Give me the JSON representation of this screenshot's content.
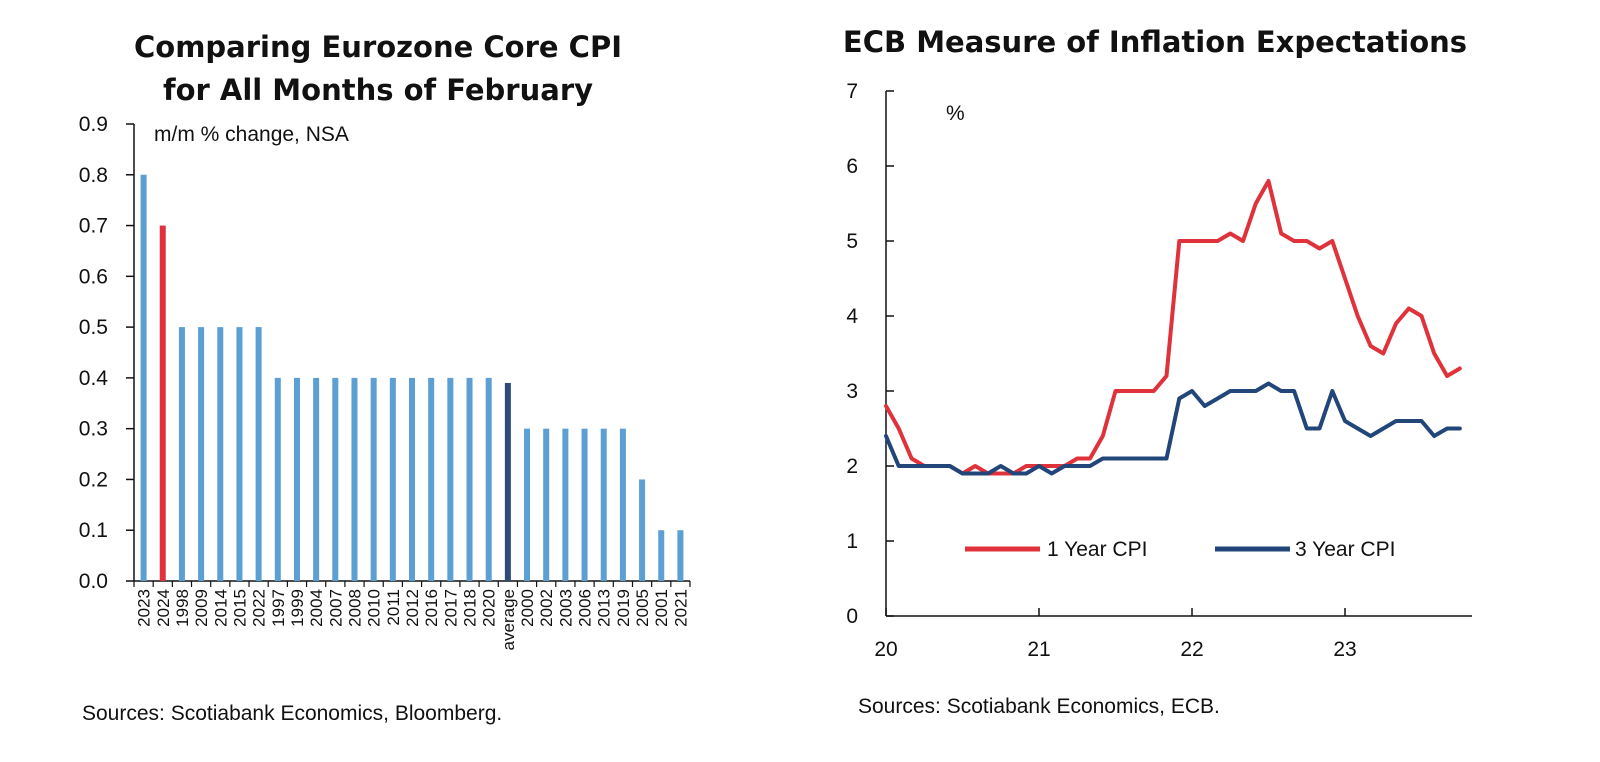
{
  "colors": {
    "bar_default": "#5b9fd3",
    "bar_highlight": "#e0323a",
    "bar_average": "#2d4a79",
    "line_1yr": "#e0323a",
    "line_3yr": "#23467a"
  },
  "chart_data": [
    {
      "type": "bar",
      "title_lines": [
        "Comparing Eurozone Core CPI",
        "for All Months of February"
      ],
      "annotation": "m/m % change, NSA",
      "source": "Sources: Scotiabank Economics, Bloomberg.",
      "ylim": [
        0,
        0.9
      ],
      "yticks": [
        "0.0",
        "0.1",
        "0.2",
        "0.3",
        "0.4",
        "0.5",
        "0.6",
        "0.7",
        "0.8",
        "0.9"
      ],
      "categories": [
        "2023",
        "2024",
        "1998",
        "2009",
        "2014",
        "2015",
        "2022",
        "1997",
        "1999",
        "2004",
        "2007",
        "2008",
        "2010",
        "2011",
        "2012",
        "2016",
        "2017",
        "2018",
        "2020",
        "average",
        "2000",
        "2002",
        "2003",
        "2006",
        "2013",
        "2019",
        "2005",
        "2001",
        "2021"
      ],
      "values": [
        0.8,
        0.7,
        0.5,
        0.5,
        0.5,
        0.5,
        0.5,
        0.4,
        0.4,
        0.4,
        0.4,
        0.4,
        0.4,
        0.4,
        0.4,
        0.4,
        0.4,
        0.4,
        0.4,
        0.39,
        0.3,
        0.3,
        0.3,
        0.3,
        0.3,
        0.3,
        0.2,
        0.1,
        0.1
      ],
      "highlight": [
        "2024"
      ],
      "average_category": "average",
      "grid": false,
      "legend": "none"
    },
    {
      "type": "line",
      "title": "ECB Measure of Inflation Expectations",
      "annotation": "%",
      "source": "Sources: Scotiabank Economics,  ECB.",
      "ylim": [
        0,
        7
      ],
      "yticks": [
        "0",
        "1",
        "2",
        "3",
        "4",
        "5",
        "6",
        "7"
      ],
      "xlim": [
        20,
        23.83
      ],
      "xticks": [
        "20",
        "21",
        "22",
        "23"
      ],
      "grid": false,
      "legend": "lower-center",
      "series": [
        {
          "name": "1 Year CPI",
          "x": [
            20.0,
            20.083,
            20.167,
            20.25,
            20.333,
            20.417,
            20.5,
            20.583,
            20.667,
            20.75,
            20.833,
            20.917,
            21.0,
            21.083,
            21.167,
            21.25,
            21.333,
            21.417,
            21.5,
            21.583,
            21.667,
            21.75,
            21.833,
            21.917,
            22.0,
            22.083,
            22.167,
            22.25,
            22.333,
            22.417,
            22.5,
            22.583,
            22.667,
            22.75,
            22.833,
            22.917,
            23.0,
            23.083,
            23.167,
            23.25,
            23.333,
            23.417,
            23.5,
            23.583,
            23.667,
            23.75
          ],
          "values": [
            2.8,
            2.5,
            2.1,
            2.0,
            2.0,
            2.0,
            1.9,
            2.0,
            1.9,
            1.9,
            1.9,
            2.0,
            2.0,
            2.0,
            2.0,
            2.1,
            2.1,
            2.4,
            3.0,
            3.0,
            3.0,
            3.0,
            3.2,
            5.0,
            5.0,
            5.0,
            5.0,
            5.1,
            5.0,
            5.5,
            5.8,
            5.1,
            5.0,
            5.0,
            4.9,
            5.0,
            4.5,
            4.0,
            3.6,
            3.5,
            3.9,
            4.1,
            4.0,
            3.5,
            3.2,
            3.3
          ]
        },
        {
          "name": "3 Year CPI",
          "x": [
            20.0,
            20.083,
            20.167,
            20.25,
            20.333,
            20.417,
            20.5,
            20.583,
            20.667,
            20.75,
            20.833,
            20.917,
            21.0,
            21.083,
            21.167,
            21.25,
            21.333,
            21.417,
            21.5,
            21.583,
            21.667,
            21.75,
            21.833,
            21.917,
            22.0,
            22.083,
            22.167,
            22.25,
            22.333,
            22.417,
            22.5,
            22.583,
            22.667,
            22.75,
            22.833,
            22.917,
            23.0,
            23.083,
            23.167,
            23.25,
            23.333,
            23.417,
            23.5,
            23.583,
            23.667,
            23.75
          ],
          "values": [
            2.4,
            2.0,
            2.0,
            2.0,
            2.0,
            2.0,
            1.9,
            1.9,
            1.9,
            2.0,
            1.9,
            1.9,
            2.0,
            1.9,
            2.0,
            2.0,
            2.0,
            2.1,
            2.1,
            2.1,
            2.1,
            2.1,
            2.1,
            2.9,
            3.0,
            2.8,
            2.9,
            3.0,
            3.0,
            3.0,
            3.1,
            3.0,
            3.0,
            2.5,
            2.5,
            3.0,
            2.6,
            2.5,
            2.4,
            2.5,
            2.6,
            2.6,
            2.6,
            2.4,
            2.5,
            2.5
          ]
        }
      ]
    }
  ]
}
